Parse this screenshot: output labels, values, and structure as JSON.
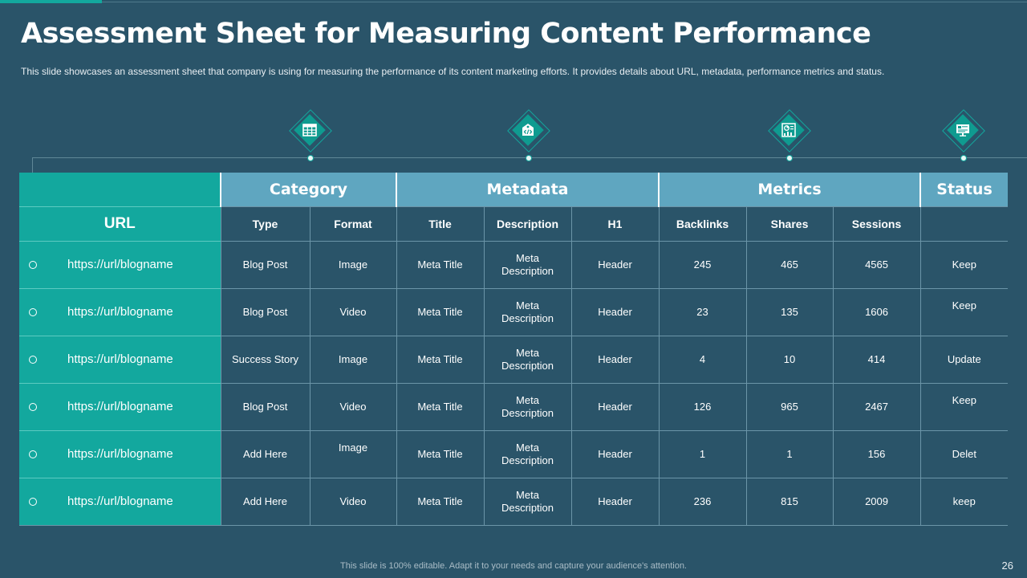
{
  "slide": {
    "title": "Assessment Sheet for Measuring Content Performance",
    "subtitle": "This slide showcases an assessment sheet that company is using for measuring the performance  of its content marketing efforts.  It provides  details about URL, metadata, performance  metrics and status.",
    "footer": "This slide is 100% editable. Adapt it to your needs and capture your audience's attention.",
    "page_number": "26"
  },
  "icons": [
    "spreadsheet-icon",
    "code-tag-icon",
    "analytics-chart-icon",
    "monitor-status-icon"
  ],
  "colors": {
    "background": "#2a5469",
    "accent": "#13a89e",
    "header_blue": "#5fa6c0"
  },
  "table": {
    "url_header": "URL",
    "groups": [
      "Category",
      "Metadata",
      "Metrics",
      "Status"
    ],
    "columns": [
      "Type",
      "Format",
      "Title",
      "Description",
      "H1",
      "Backlinks",
      "Shares",
      "Sessions"
    ],
    "rows": [
      {
        "url": "https://url/blogname",
        "type": "Blog Post",
        "format": "Image",
        "title": "Meta Title",
        "desc1": "Meta",
        "desc2": "Description",
        "h1": "Header",
        "backlinks": "245",
        "shares": "465",
        "sessions": "4565",
        "status": "Keep"
      },
      {
        "url": "https://url/blogname",
        "type": "Blog Post",
        "format": "Video",
        "title": "Meta Title",
        "desc1": "Meta",
        "desc2": "Description",
        "h1": "Header",
        "backlinks": "23",
        "shares": "135",
        "sessions": "1606",
        "status": "Keep"
      },
      {
        "url": "https://url/blogname",
        "type": "Success Story",
        "format": "Image",
        "title": "Meta Title",
        "desc1": "Meta",
        "desc2": "Description",
        "h1": "Header",
        "backlinks": "4",
        "shares": "10",
        "sessions": "414",
        "status": "Update"
      },
      {
        "url": "https://url/blogname",
        "type": "Blog Post",
        "format": "Video",
        "title": "Meta Title",
        "desc1": "Meta",
        "desc2": "Description",
        "h1": "Header",
        "backlinks": "126",
        "shares": "965",
        "sessions": "2467",
        "status": "Keep"
      },
      {
        "url": "https://url/blogname",
        "type": "Add Here",
        "format": "Image",
        "title": "Meta Title",
        "desc1": "Meta",
        "desc2": "Description",
        "h1": "Header",
        "backlinks": "1",
        "shares": "1",
        "sessions": "156",
        "status": "Delet"
      },
      {
        "url": "https://url/blogname",
        "type": "Add Here",
        "format": "Video",
        "title": "Meta Title",
        "desc1": "Meta",
        "desc2": "Description",
        "h1": "Header",
        "backlinks": "236",
        "shares": "815",
        "sessions": "2009",
        "status": "keep"
      }
    ]
  }
}
